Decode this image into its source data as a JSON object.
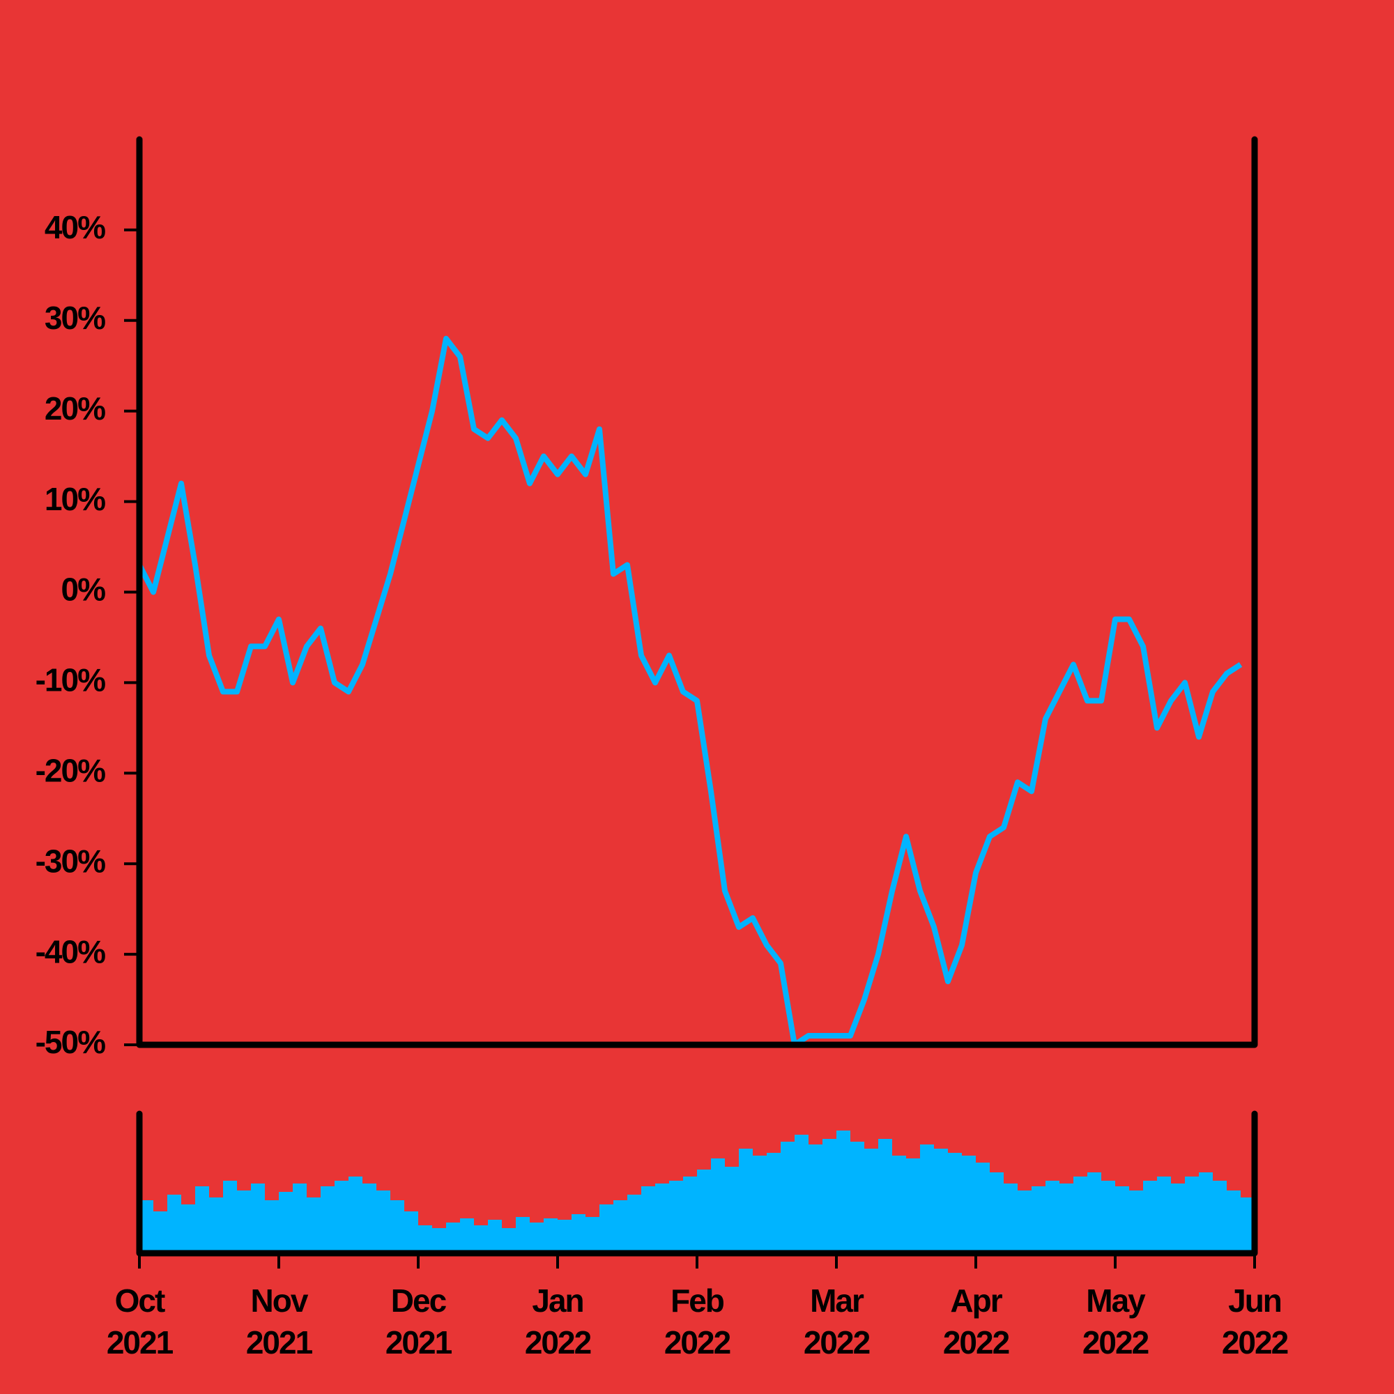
{
  "chart_data": [
    {
      "type": "line",
      "x": [
        0,
        0.1,
        0.2,
        0.3,
        0.4,
        0.5,
        0.6,
        0.7,
        0.8,
        0.9,
        1,
        1.1,
        1.2,
        1.3,
        1.4,
        1.5,
        1.6,
        1.7,
        1.8,
        1.9,
        2,
        2.1,
        2.2,
        2.3,
        2.4,
        2.5,
        2.6,
        2.7,
        2.8,
        2.9,
        3,
        3.1,
        3.2,
        3.3,
        3.4,
        3.5,
        3.6,
        3.7,
        3.8,
        3.9,
        4,
        4.1,
        4.2,
        4.3,
        4.4,
        4.5,
        4.6,
        4.7,
        4.8,
        4.9,
        5,
        5.1,
        5.2,
        5.3,
        5.4,
        5.5,
        5.6,
        5.7,
        5.8,
        5.9,
        6,
        6.1,
        6.2,
        6.3,
        6.4,
        6.5,
        6.6,
        6.7,
        6.8,
        6.9,
        7,
        7.1,
        7.2,
        7.3,
        7.4,
        7.5,
        7.6,
        7.7,
        7.8,
        7.9
      ],
      "series": [
        {
          "color": "#00b4ff",
          "values": [
            3,
            0,
            6,
            12,
            3,
            -7,
            -11,
            -11,
            -6,
            -6,
            -3,
            -10,
            -6,
            -4,
            -10,
            -11,
            -8,
            -3,
            2,
            8,
            14,
            20,
            28,
            26,
            18,
            17,
            19,
            17,
            12,
            15,
            13,
            15,
            13,
            18,
            2,
            3,
            -7,
            -10,
            -7,
            -11,
            -12,
            -22,
            -33,
            -37,
            -36,
            -39,
            -41,
            -50,
            -49,
            -49,
            -49,
            -49,
            -45,
            -40,
            -33,
            -27,
            -33,
            -37,
            -43,
            -39,
            -31,
            -27,
            -26,
            -21,
            -22,
            -14,
            -11,
            -8,
            -12,
            -12,
            -3,
            -3,
            -6,
            -15,
            -12,
            -10,
            -16,
            -11,
            -9,
            -8
          ]
        }
      ],
      "xlim": [
        0,
        8
      ],
      "ylim": [
        -50,
        50
      ],
      "yticks": [
        {
          "value": -50,
          "label": "-50%"
        },
        {
          "value": -40,
          "label": "-40%"
        },
        {
          "value": -30,
          "label": "-30%"
        },
        {
          "value": -20,
          "label": "-20%"
        },
        {
          "value": -10,
          "label": "-10%"
        },
        {
          "value": 0,
          "label": "0%"
        },
        {
          "value": 10,
          "label": "10%"
        },
        {
          "value": 20,
          "label": "20%"
        },
        {
          "value": 30,
          "label": "30%"
        },
        {
          "value": 40,
          "label": "40%"
        }
      ]
    },
    {
      "type": "bar",
      "x": [
        0,
        0.1,
        0.2,
        0.3,
        0.4,
        0.5,
        0.6,
        0.7,
        0.8,
        0.9,
        1,
        1.1,
        1.2,
        1.3,
        1.4,
        1.5,
        1.6,
        1.7,
        1.8,
        1.9,
        2,
        2.1,
        2.2,
        2.3,
        2.4,
        2.5,
        2.6,
        2.7,
        2.8,
        2.9,
        3,
        3.1,
        3.2,
        3.3,
        3.4,
        3.5,
        3.6,
        3.7,
        3.8,
        3.9,
        4,
        4.1,
        4.2,
        4.3,
        4.4,
        4.5,
        4.6,
        4.7,
        4.8,
        4.9,
        5,
        5.1,
        5.2,
        5.3,
        5.4,
        5.5,
        5.6,
        5.7,
        5.8,
        5.9,
        6,
        6.1,
        6.2,
        6.3,
        6.4,
        6.5,
        6.6,
        6.7,
        6.8,
        6.9,
        7,
        7.1,
        7.2,
        7.3,
        7.4,
        7.5,
        7.6,
        7.7,
        7.8,
        7.9
      ],
      "values": [
        38,
        30,
        42,
        35,
        48,
        40,
        52,
        45,
        50,
        38,
        44,
        50,
        40,
        48,
        52,
        55,
        50,
        45,
        38,
        30,
        20,
        18,
        22,
        25,
        20,
        24,
        18,
        26,
        22,
        25,
        24,
        28,
        26,
        35,
        38,
        42,
        48,
        50,
        52,
        55,
        60,
        68,
        62,
        75,
        70,
        72,
        80,
        85,
        78,
        82,
        88,
        80,
        75,
        82,
        70,
        68,
        78,
        75,
        72,
        70,
        65,
        58,
        50,
        45,
        48,
        52,
        50,
        55,
        58,
        52,
        48,
        45,
        52,
        55,
        50,
        55,
        58,
        52,
        45,
        40
      ],
      "color": "#00b4ff",
      "xlim": [
        0,
        8
      ],
      "ylim": [
        0,
        100
      ],
      "xticks": [
        {
          "value": 0,
          "label": "Oct 2021"
        },
        {
          "value": 1,
          "label": "Nov 2021"
        },
        {
          "value": 2,
          "label": "Dec 2021"
        },
        {
          "value": 3,
          "label": "Jan 2022"
        },
        {
          "value": 4,
          "label": "Feb 2022"
        },
        {
          "value": 5,
          "label": "Mar 2022"
        },
        {
          "value": 6,
          "label": "Apr 2022"
        },
        {
          "value": 7,
          "label": "May 2022"
        },
        {
          "value": 8,
          "label": "Jun 2022"
        }
      ]
    }
  ]
}
